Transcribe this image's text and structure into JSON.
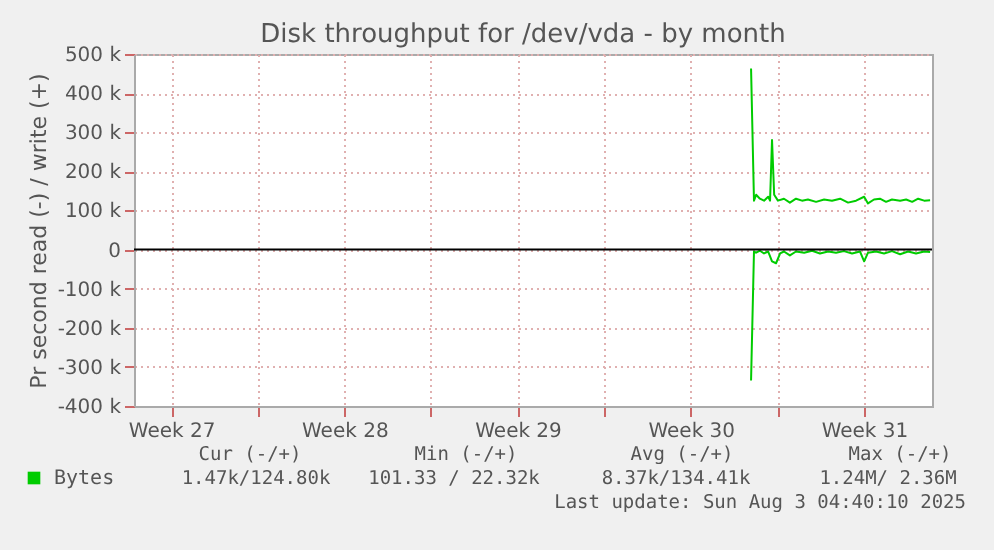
{
  "chart_data": {
    "type": "line",
    "title": "Disk throughput for /dev/vda - by month",
    "ylabel": "Pr second read (-) / write (+)",
    "xlim": [
      "2025-07-02T00:00",
      "2025-08-03T06:00"
    ],
    "xticks": [
      {
        "value": "2025-07-03T12:00",
        "label": "Week 27"
      },
      {
        "value": "2025-07-07T00:00",
        "label": null
      },
      {
        "value": "2025-07-10T12:00",
        "label": "Week 28"
      },
      {
        "value": "2025-07-14T00:00",
        "label": null
      },
      {
        "value": "2025-07-17T12:00",
        "label": "Week 29"
      },
      {
        "value": "2025-07-21T00:00",
        "label": null
      },
      {
        "value": "2025-07-24T12:00",
        "label": "Week 30"
      },
      {
        "value": "2025-07-28T00:00",
        "label": null
      },
      {
        "value": "2025-07-31T12:00",
        "label": "Week 31"
      }
    ],
    "ylim": [
      -400000,
      500000
    ],
    "yticks": [
      {
        "value": -400000,
        "label": "-400 k"
      },
      {
        "value": -300000,
        "label": "-300 k"
      },
      {
        "value": -200000,
        "label": "-200 k"
      },
      {
        "value": -100000,
        "label": "-100 k"
      },
      0,
      {
        "value": 100000,
        "label": "100 k"
      },
      {
        "value": 200000,
        "label": "200 k"
      },
      {
        "value": 300000,
        "label": "300 k"
      },
      {
        "value": 400000,
        "label": "400 k"
      },
      {
        "value": 500000,
        "label": "500 k"
      }
    ],
    "grid": true,
    "legend": "bottom left",
    "line_style": "solid",
    "marker": "none",
    "ref_lines": [
      {
        "axis": "y",
        "value": 0,
        "color": "#000000"
      }
    ],
    "series": [
      {
        "name": "Bytes",
        "color": "#00cc00",
        "x": [
          "2025-07-26T22:30",
          "2025-07-27T01:20",
          "2025-07-27T03:25",
          "2025-07-27T07:05",
          "2025-07-27T11:05",
          "2025-07-27T15:05",
          "2025-07-27T16:55",
          "2025-07-27T18:50",
          "2025-07-27T20:55",
          "2025-07-28T00:35",
          "2025-07-28T06:25",
          "2025-07-28T12:10",
          "2025-07-28T18:05",
          "2025-07-28T23:55",
          "2025-07-29T05:40",
          "2025-07-29T13:35",
          "2025-07-29T21:20",
          "2025-07-30T05:00",
          "2025-07-30T12:55",
          "2025-07-30T20:35",
          "2025-07-31T04:20",
          "2025-07-31T12:10",
          "2025-07-31T15:55",
          "2025-07-31T21:45",
          "2025-08-01T03:30",
          "2025-08-01T09:25",
          "2025-08-01T15:10",
          "2025-08-01T23:05",
          "2025-08-02T04:55",
          "2025-08-02T10:45",
          "2025-08-02T16:35",
          "2025-08-02T22:25",
          "2025-08-03T04:10"
        ],
        "values": [
          463000,
          125000,
          140000,
          130000,
          125000,
          135000,
          125000,
          280000,
          140000,
          125000,
          130000,
          120000,
          130000,
          125000,
          128000,
          122000,
          128000,
          125000,
          130000,
          120000,
          125000,
          135000,
          118000,
          128000,
          130000,
          122000,
          128000,
          125000,
          128000,
          122000,
          130000,
          125000,
          126000
        ]
      },
      {
        "color": "#00cc00",
        "x": [
          "2025-07-26T22:30",
          "2025-07-27T01:20",
          "2025-07-27T03:25",
          "2025-07-27T07:05",
          "2025-07-27T11:05",
          "2025-07-27T15:05",
          "2025-07-27T18:50",
          "2025-07-27T22:45",
          "2025-07-28T02:40",
          "2025-07-28T06:25",
          "2025-07-28T12:10",
          "2025-07-28T18:05",
          "2025-07-29T02:00",
          "2025-07-29T09:40",
          "2025-07-29T17:20",
          "2025-07-30T01:15",
          "2025-07-30T08:55",
          "2025-07-30T16:35",
          "2025-07-31T00:30",
          "2025-07-31T08:10",
          "2025-07-31T12:10",
          "2025-07-31T15:55",
          "2025-07-31T23:50",
          "2025-08-01T07:30",
          "2025-08-01T15:10",
          "2025-08-01T23:05",
          "2025-08-02T06:50",
          "2025-08-02T14:30",
          "2025-08-02T22:25",
          "2025-08-03T04:10"
        ],
        "values": [
          -335000,
          -5000,
          -8000,
          -3000,
          -10000,
          -5000,
          -30000,
          -35000,
          -10000,
          -5000,
          -15000,
          -5000,
          -8000,
          -3000,
          -10000,
          -5000,
          -8000,
          -4000,
          -10000,
          -5000,
          -30000,
          -8000,
          -5000,
          -10000,
          -4000,
          -12000,
          -5000,
          -10000,
          -5000,
          -6000
        ]
      }
    ],
    "annotations": [
      "Cur (-/+)",
      "Min (-/+)",
      "Avg (-/+)",
      "Max (-/+)",
      "1.47k/124.80k",
      "101.33 / 22.32k",
      "8.37k/134.41k",
      "1.24M/  2.36M",
      "Last update: Sun Aug  3 04:40:10 2025"
    ]
  }
}
